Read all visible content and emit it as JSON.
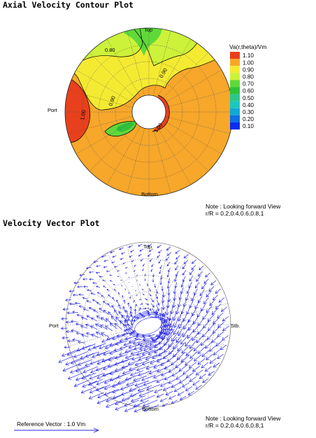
{
  "titles": {
    "contour": "Axial Velocity Contour Plot",
    "vector": "Velocity Vector Plot"
  },
  "orientation": {
    "top": "Top",
    "bottom": "Bottom",
    "port": "Port",
    "starboard": "Stb."
  },
  "notes": {
    "contour": [
      "Note : Looking forward View",
      "r/R = 0.2,0.4,0.6,0.8,1"
    ],
    "vector": [
      "Note : Looking forward View",
      "r/R = 0.2,0.4,0.6,0.8,1"
    ]
  },
  "reference_vector": "Reference Vector : 1.0 Vm",
  "colors": {
    "1.10": "#e8401c",
    "1.00": "#f7a72a",
    "0.90": "#f4ea32",
    "0.80": "#ccf23a",
    "0.70": "#5fd93a",
    "0.60": "#2fc23a",
    "0.50": "#2ac78f",
    "0.40": "#1bc7c2",
    "0.30": "#11a7d6",
    "0.20": "#0f6fe4",
    "0.10": "#0a2df0",
    "vector": "#2a2ae6"
  },
  "chart_data": [
    {
      "type": "heatmap",
      "subtype": "polar-contour",
      "title": "Axial Velocity Contour Plot",
      "colorbar_title": "Va(r,theta)/Vm",
      "levels": [
        "1.10",
        "1.00",
        "0.90",
        "0.80",
        "0.70",
        "0.60",
        "0.50",
        "0.40",
        "0.30",
        "0.20",
        "0.10"
      ],
      "radial_rings_r_over_R": [
        0.2,
        0.4,
        0.6,
        0.8,
        1.0
      ],
      "angular_spokes_deg": 15,
      "hub_r_over_R": 0.2,
      "contour_labels": [
        "0.80",
        "0.90",
        "0.90",
        "1.00",
        "1.00"
      ],
      "regions": [
        {
          "level": "1.10",
          "location": "port side, near outer radius (~270°)"
        },
        {
          "level": "1.10",
          "location": "starboard side of hub (~80°)"
        },
        {
          "level": "1.00",
          "location": "lower half and starboard outer region"
        },
        {
          "level": "0.90",
          "location": "upper half wake band"
        },
        {
          "level": "0.80",
          "location": "top-left outer sector and top sector"
        },
        {
          "level": "0.70",
          "location": "top sector near outer radius, small pocket left of hub"
        },
        {
          "level": "0.60",
          "location": "small pocket left-below hub"
        }
      ]
    },
    {
      "type": "scatter",
      "subtype": "polar-vector-field",
      "title": "Velocity Vector Plot",
      "radial_rings_r_over_R": [
        0.2,
        0.4,
        0.6,
        0.8,
        1.0
      ],
      "angular_spokes_deg": 15,
      "flow_pattern": "vectors sweep right to left across the upper disk and wrap around the hub, large vectors along the lower-left boundary",
      "reference_vector_Vm": 1.0
    }
  ]
}
